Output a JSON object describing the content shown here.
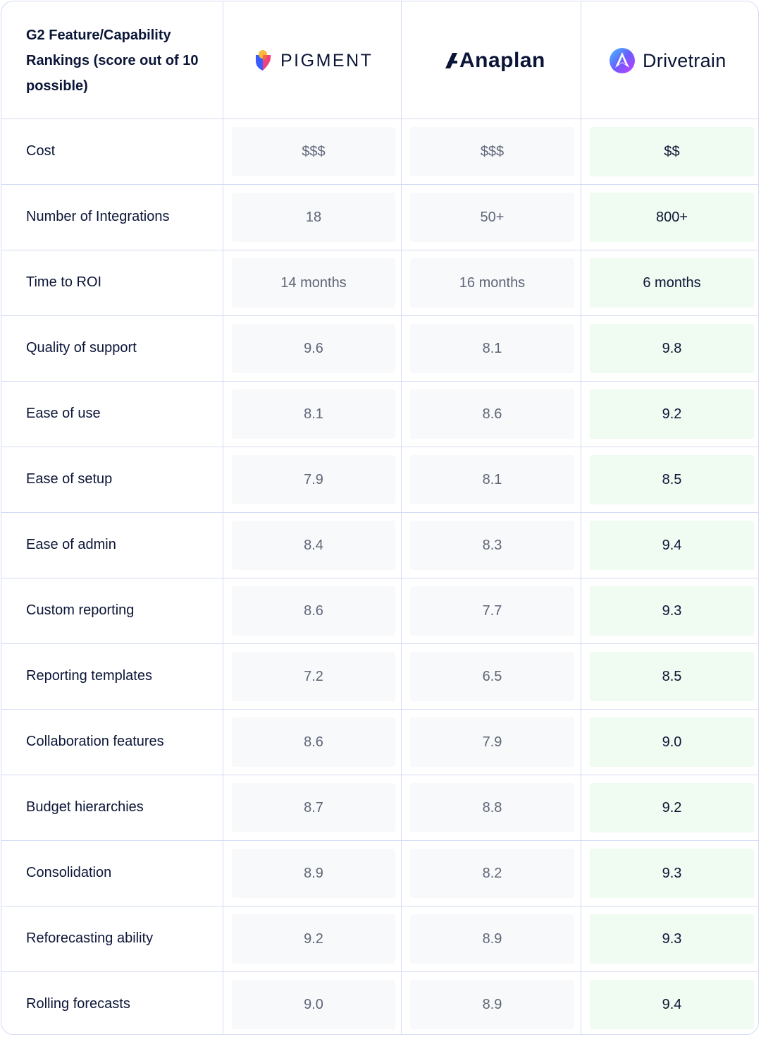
{
  "header": {
    "title": "G2 Feature/Capability Rankings (score out of 10 possible)",
    "vendors": [
      {
        "name": "PIGMENT",
        "icon": "pigment-logo-icon"
      },
      {
        "name": "Anaplan",
        "icon": "anaplan-logo-icon"
      },
      {
        "name": "Drivetrain",
        "icon": "drivetrain-logo-icon"
      }
    ]
  },
  "colors": {
    "border": "#d5dcf5",
    "competitor_cell_bg": "#f8f9fb",
    "highlight_cell_bg": "#f0fbf1",
    "text_dark": "#0b1537",
    "text_muted": "#5f6677"
  },
  "rows": [
    {
      "label": "Cost",
      "values": [
        "$$$",
        "$$$",
        "$$"
      ]
    },
    {
      "label": "Number of Integrations",
      "values": [
        "18",
        "50+",
        "800+"
      ]
    },
    {
      "label": "Time to ROI",
      "values": [
        "14 months",
        "16 months",
        "6 months"
      ]
    },
    {
      "label": "Quality of support",
      "values": [
        "9.6",
        "8.1",
        "9.8"
      ]
    },
    {
      "label": "Ease of use",
      "values": [
        "8.1",
        "8.6",
        "9.2"
      ]
    },
    {
      "label": "Ease of setup",
      "values": [
        "7.9",
        "8.1",
        "8.5"
      ]
    },
    {
      "label": "Ease of admin",
      "values": [
        "8.4",
        "8.3",
        "9.4"
      ]
    },
    {
      "label": "Custom reporting",
      "values": [
        "8.6",
        "7.7",
        "9.3"
      ]
    },
    {
      "label": "Reporting templates",
      "values": [
        "7.2",
        "6.5",
        "8.5"
      ]
    },
    {
      "label": "Collaboration features",
      "values": [
        "8.6",
        "7.9",
        "9.0"
      ]
    },
    {
      "label": "Budget hierarchies",
      "values": [
        "8.7",
        "8.8",
        "9.2"
      ]
    },
    {
      "label": "Consolidation",
      "values": [
        "8.9",
        "8.2",
        "9.3"
      ]
    },
    {
      "label": "Reforecasting ability",
      "values": [
        "9.2",
        "8.9",
        "9.3"
      ]
    },
    {
      "label": "Rolling forecasts",
      "values": [
        "9.0",
        "8.9",
        "9.4"
      ]
    }
  ]
}
